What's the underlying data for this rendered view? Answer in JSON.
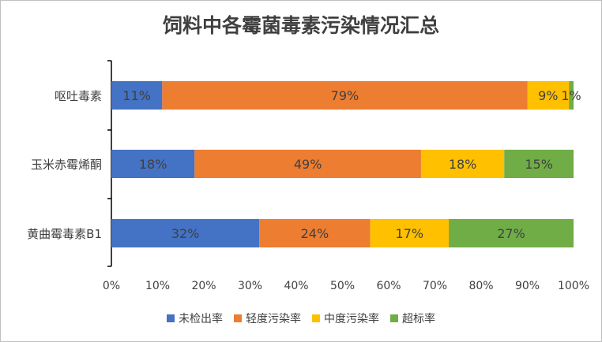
{
  "chart_data": {
    "type": "bar",
    "orientation": "horizontal",
    "stacked": "percent",
    "title": "饲料中各霉菌毒素污染情况汇总",
    "categories": [
      "呕吐毒素",
      "玉米赤霉烯酮",
      "黄曲霉毒素B1"
    ],
    "series": [
      {
        "name": "未检出率",
        "color": "#4472C4",
        "values": [
          11,
          18,
          32
        ],
        "labels": [
          "11%",
          "18%",
          "32%"
        ]
      },
      {
        "name": "轻度污染率",
        "color": "#ED7D31",
        "values": [
          79,
          49,
          24
        ],
        "labels": [
          "79%",
          "49%",
          "24%"
        ]
      },
      {
        "name": "中度污染率",
        "color": "#FFC000",
        "values": [
          9,
          18,
          17
        ],
        "labels": [
          "9%",
          "18%",
          "17%"
        ]
      },
      {
        "name": "超标率",
        "color": "#70AD47",
        "values": [
          1,
          15,
          27
        ],
        "labels": [
          "1%",
          "15%",
          "27%"
        ]
      }
    ],
    "xlim": [
      0,
      100
    ],
    "x_ticks": [
      "0%",
      "10%",
      "20%",
      "30%",
      "40%",
      "50%",
      "60%",
      "70%",
      "80%",
      "90%",
      "100%"
    ],
    "grid": false,
    "legend_position": "bottom"
  }
}
